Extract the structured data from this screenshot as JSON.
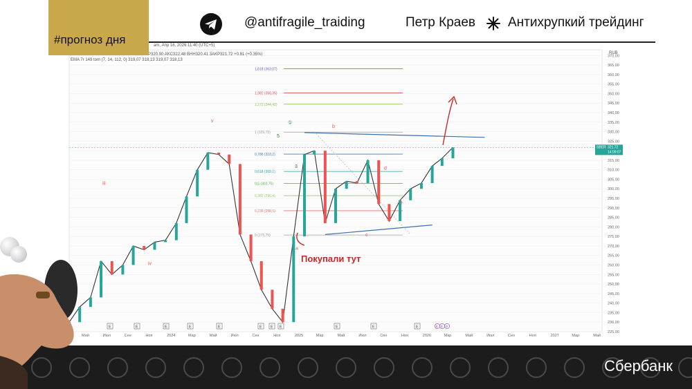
{
  "header": {
    "tag": "#прогноз дня",
    "handle": "@antifragile_traiding",
    "author": "Петр Краев",
    "project": "Антихрупкий трейдинг",
    "icons": [
      "telegram-icon",
      "star-icon"
    ]
  },
  "chart_info": {
    "info_line": "am, Апр 16, 2026 11:40 (UTC+5)",
    "indicator_line": "EMA 7r 149 tom (7, 14, 112, 0)  319,07  318,13  319,07  318,13",
    "ohlc_line": "KP320,90  AKC322,48  BHH320,41  3AKP321,72  +0,81 (+0,35%)"
  },
  "chart_data": {
    "type": "line",
    "currency": "RUB",
    "y_ticks": [
      225,
      230,
      235,
      240,
      245,
      250,
      255,
      260,
      265,
      270,
      275,
      280,
      285,
      290,
      295,
      300,
      305,
      310,
      315,
      320,
      325,
      330,
      335,
      340,
      345,
      350,
      355,
      360,
      365,
      370
    ],
    "ylim": [
      225,
      373
    ],
    "x_ticks": [
      "Май",
      "Июл",
      "Сен",
      "Ноя",
      "2024",
      "Мар",
      "Май",
      "Июл",
      "Сен",
      "Ноя",
      "2025",
      "Мар",
      "Май",
      "Июл",
      "Сен",
      "Ноя",
      "2026",
      "Мар",
      "Май",
      "Июл",
      "Сен",
      "Ноя",
      "2027",
      "Мар",
      "Май"
    ],
    "price_series": {
      "x": [
        "2023-04",
        "2023-05",
        "2023-06",
        "2023-07",
        "2023-08",
        "2023-09",
        "2023-10",
        "2023-11",
        "2023-12",
        "2024-01",
        "2024-02",
        "2024-03",
        "2024-04",
        "2024-05",
        "2024-06",
        "2024-07",
        "2024-08",
        "2024-09",
        "2024-10",
        "2024-11",
        "2024-12",
        "2025-01",
        "2025-02",
        "2025-03",
        "2025-04",
        "2025-05",
        "2025-06",
        "2025-07",
        "2025-08",
        "2025-09",
        "2025-10",
        "2025-11",
        "2025-12",
        "2026-01",
        "2026-02",
        "2026-03",
        "2026-04"
      ],
      "y": [
        230,
        238,
        243,
        262,
        255,
        260,
        270,
        268,
        272,
        273,
        282,
        296,
        310,
        319,
        318,
        313,
        276,
        262,
        247,
        237,
        230,
        275,
        318,
        320,
        282,
        300,
        304,
        303,
        315,
        292,
        283,
        294,
        300,
        303,
        312,
        316,
        321.72
      ]
    },
    "last_price": "321,72",
    "countdown": "14:09:07",
    "ticker": "SBER",
    "fib_levels": [
      {
        "label": "1,618 (363,07)",
        "value": 363.07,
        "color": "#6a5acd"
      },
      {
        "label": "1,382 (350,35)",
        "value": 350.35,
        "color": "#d9534f"
      },
      {
        "label": "1,272 (344,42)",
        "value": 344.42,
        "color": "#8bc34a"
      },
      {
        "label": "1 (329,75)",
        "value": 329.75,
        "color": "#9e9e9e"
      },
      {
        "label": "0,786 (318,2)",
        "value": 318.2,
        "color": "#3f7fbf"
      },
      {
        "label": "0,618 (309,1)",
        "value": 309.1,
        "color": "#26a69a"
      },
      {
        "label": "0,5 (302,75)",
        "value": 302.75,
        "color": "#4caf50"
      },
      {
        "label": "0,382 (296,4)",
        "value": 296.4,
        "color": "#9ccc65"
      },
      {
        "label": "0,236 (288,5)",
        "value": 288.5,
        "color": "#e57373"
      },
      {
        "label": "0 (275,75)",
        "value": 275.75,
        "color": "#9e9e9e"
      }
    ],
    "wave_labels": [
      "v",
      "iii",
      "iv",
      "b",
      "d",
      "e",
      "c",
      "a",
      "①",
      "3",
      "5"
    ],
    "annotation": "Покупали тут",
    "event_markers": [
      "E",
      "E",
      "E",
      "E",
      "E",
      "E",
      "E",
      "E",
      "E",
      "E",
      "E"
    ],
    "future_markers": [
      "Е",
      "Е",
      "D"
    ]
  },
  "footer": {
    "company": "Сбербанк"
  },
  "colors": {
    "accent": "#c9a84c",
    "up": "#26a69a",
    "down": "#ef5350",
    "trendline": "#3a6fb0",
    "annotation": "#c62828"
  }
}
